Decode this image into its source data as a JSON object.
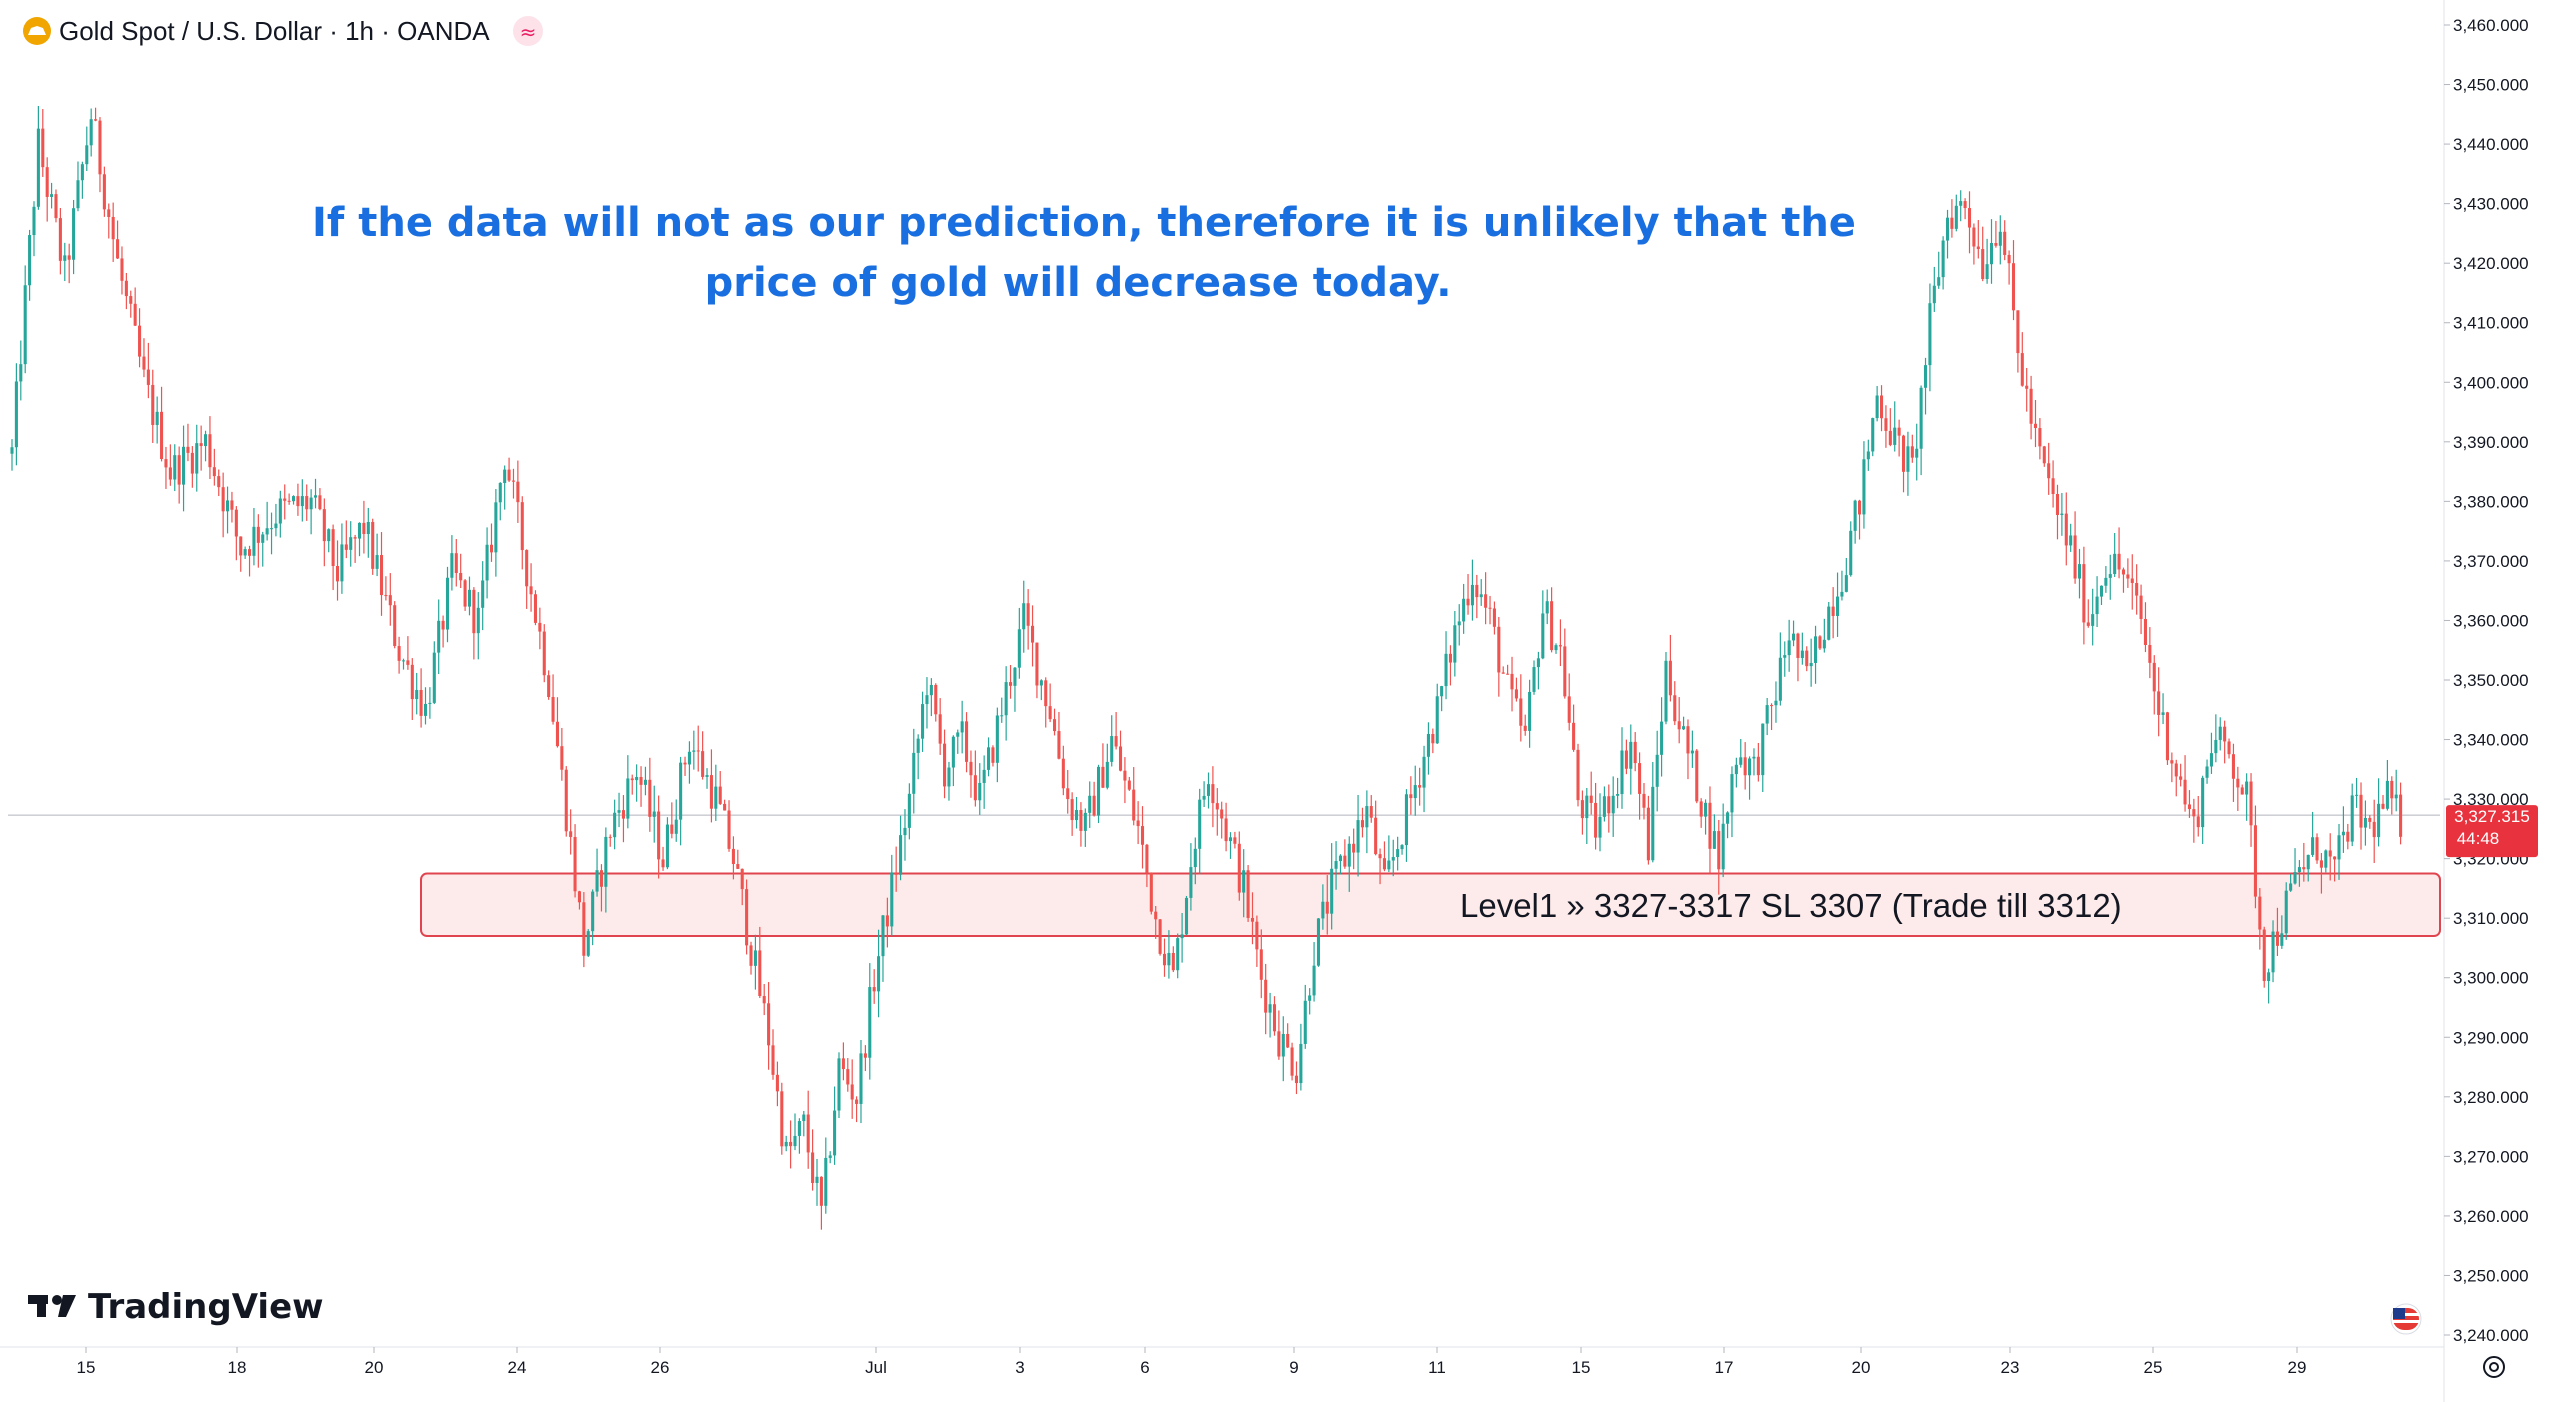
{
  "header": {
    "symbol_title": "Gold Spot / U.S. Dollar · 1h · OANDA",
    "indicator_glyph": "≈"
  },
  "annotation": {
    "line1": "If the data will not as our prediction, therefore it is unlikely that the",
    "line2": "price of gold will decrease today."
  },
  "zone": {
    "label": "Level1 » 3327-3317 SL 3307 (Trade till 3312)",
    "top": 3317.5,
    "bottom": 3307
  },
  "price_tag": {
    "price": "3,327.315",
    "countdown": "44:48"
  },
  "brand": {
    "name": "TradingView"
  },
  "colors": {
    "up": "#26a69a",
    "down": "#ef5350",
    "annotation": "#1a6fe0",
    "zone_fill": "#fde6e6",
    "zone_border": "#e0454f",
    "price_tag": "#e8333f"
  },
  "icons": {
    "symbol_logo": "gold-coin-icon",
    "indicator": "compare-icon",
    "settings": "gear-icon",
    "flag": "us-flag-icon",
    "brand_logo": "tradingview-logo-icon"
  },
  "chart_data": {
    "type": "candlestick",
    "y_ticks": [
      "3,460.000",
      "3,450.000",
      "3,440.000",
      "3,430.000",
      "3,420.000",
      "3,410.000",
      "3,400.000",
      "3,390.000",
      "3,380.000",
      "3,370.000",
      "3,360.000",
      "3,350.000",
      "3,340.000",
      "3,330.000",
      "3,320.000",
      "3,310.000",
      "3,300.000",
      "3,290.000",
      "3,280.000",
      "3,270.000",
      "3,260.000",
      "3,250.000",
      "3,240.000"
    ],
    "ylim": [
      3240,
      3460
    ],
    "x_ticks": [
      "15",
      "18",
      "20",
      "24",
      "26",
      "Jul",
      "3",
      "6",
      "9",
      "11",
      "15",
      "17",
      "20",
      "23",
      "25",
      "29"
    ],
    "current_price": 3327.315,
    "price_path": [
      [
        0,
        3388
      ],
      [
        3,
        3440
      ],
      [
        6,
        3418
      ],
      [
        9,
        3445
      ],
      [
        12,
        3420
      ],
      [
        15,
        3400
      ],
      [
        18,
        3385
      ],
      [
        22,
        3390
      ],
      [
        26,
        3372
      ],
      [
        30,
        3378
      ],
      [
        34,
        3380
      ],
      [
        37,
        3368
      ],
      [
        40,
        3376
      ],
      [
        44,
        3355
      ],
      [
        47,
        3345
      ],
      [
        50,
        3368
      ],
      [
        53,
        3360
      ],
      [
        56,
        3388
      ],
      [
        59,
        3365
      ],
      [
        61,
        3350
      ],
      [
        63,
        3328
      ],
      [
        65,
        3305
      ],
      [
        68,
        3325
      ],
      [
        71,
        3335
      ],
      [
        74,
        3320
      ],
      [
        77,
        3340
      ],
      [
        80,
        3330
      ],
      [
        82,
        3320
      ],
      [
        84,
        3305
      ],
      [
        86,
        3290
      ],
      [
        88,
        3270
      ],
      [
        90,
        3275
      ],
      [
        92,
        3260
      ],
      [
        94,
        3285
      ],
      [
        96,
        3280
      ],
      [
        98,
        3300
      ],
      [
        100,
        3315
      ],
      [
        102,
        3330
      ],
      [
        104,
        3350
      ],
      [
        106,
        3335
      ],
      [
        108,
        3340
      ],
      [
        110,
        3330
      ],
      [
        112,
        3342
      ],
      [
        115,
        3360
      ],
      [
        118,
        3345
      ],
      [
        120,
        3330
      ],
      [
        122,
        3325
      ],
      [
        125,
        3340
      ],
      [
        128,
        3325
      ],
      [
        130,
        3310
      ],
      [
        132,
        3300
      ],
      [
        134,
        3320
      ],
      [
        136,
        3335
      ],
      [
        138,
        3325
      ],
      [
        140,
        3315
      ],
      [
        142,
        3300
      ],
      [
        144,
        3290
      ],
      [
        146,
        3285
      ],
      [
        148,
        3305
      ],
      [
        150,
        3315
      ],
      [
        152,
        3322
      ],
      [
        154,
        3328
      ],
      [
        156,
        3315
      ],
      [
        158,
        3325
      ],
      [
        160,
        3335
      ],
      [
        162,
        3345
      ],
      [
        164,
        3358
      ],
      [
        166,
        3368
      ],
      [
        168,
        3360
      ],
      [
        170,
        3348
      ],
      [
        172,
        3340
      ],
      [
        174,
        3362
      ],
      [
        176,
        3355
      ],
      [
        178,
        3330
      ],
      [
        180,
        3325
      ],
      [
        182,
        3332
      ],
      [
        184,
        3340
      ],
      [
        186,
        3322
      ],
      [
        188,
        3352
      ],
      [
        190,
        3340
      ],
      [
        192,
        3330
      ],
      [
        194,
        3320
      ],
      [
        196,
        3338
      ],
      [
        198,
        3335
      ],
      [
        200,
        3345
      ],
      [
        202,
        3358
      ],
      [
        204,
        3350
      ],
      [
        206,
        3360
      ],
      [
        208,
        3368
      ],
      [
        210,
        3380
      ],
      [
        212,
        3398
      ],
      [
        214,
        3390
      ],
      [
        216,
        3385
      ],
      [
        218,
        3410
      ],
      [
        220,
        3428
      ],
      [
        222,
        3430
      ],
      [
        224,
        3420
      ],
      [
        226,
        3428
      ],
      [
        228,
        3405
      ],
      [
        230,
        3390
      ],
      [
        232,
        3380
      ],
      [
        234,
        3372
      ],
      [
        236,
        3360
      ],
      [
        238,
        3370
      ],
      [
        240,
        3368
      ],
      [
        242,
        3360
      ],
      [
        244,
        3345
      ],
      [
        246,
        3335
      ],
      [
        248,
        3325
      ],
      [
        250,
        3340
      ],
      [
        252,
        3338
      ],
      [
        254,
        3330
      ],
      [
        256,
        3302
      ],
      [
        258,
        3310
      ],
      [
        260,
        3318
      ],
      [
        262,
        3322
      ],
      [
        264,
        3318
      ],
      [
        266,
        3328
      ],
      [
        268,
        3325
      ],
      [
        270,
        3330
      ],
      [
        272,
        3325
      ]
    ]
  }
}
